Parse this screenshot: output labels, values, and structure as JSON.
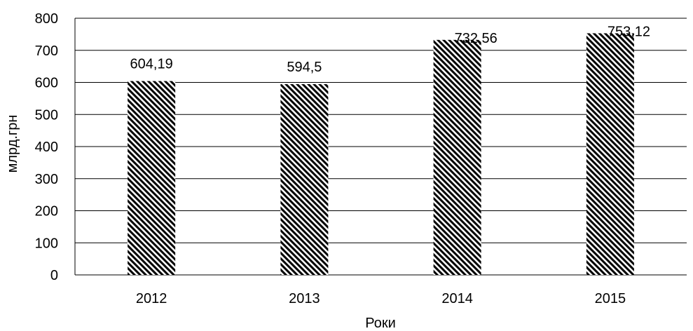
{
  "chart_data": {
    "type": "bar",
    "categories": [
      "2012",
      "2013",
      "2014",
      "2015"
    ],
    "values": [
      604.19,
      594.5,
      732.56,
      753.12
    ],
    "data_labels": [
      "604,19",
      "594,5",
      "732,56",
      "753,12"
    ],
    "xlabel": "Роки",
    "ylabel": "млрд.грн",
    "ylim": [
      0,
      800
    ],
    "yticks": [
      0,
      100,
      200,
      300,
      400,
      500,
      600,
      700,
      800
    ],
    "grid": true,
    "legend": "none",
    "bar_pattern": "diagonal-hatch",
    "colors": {
      "bar_hatch": "#000000",
      "bar_fill": "#ffffff",
      "grid": "#000000",
      "text": "#000000"
    }
  }
}
